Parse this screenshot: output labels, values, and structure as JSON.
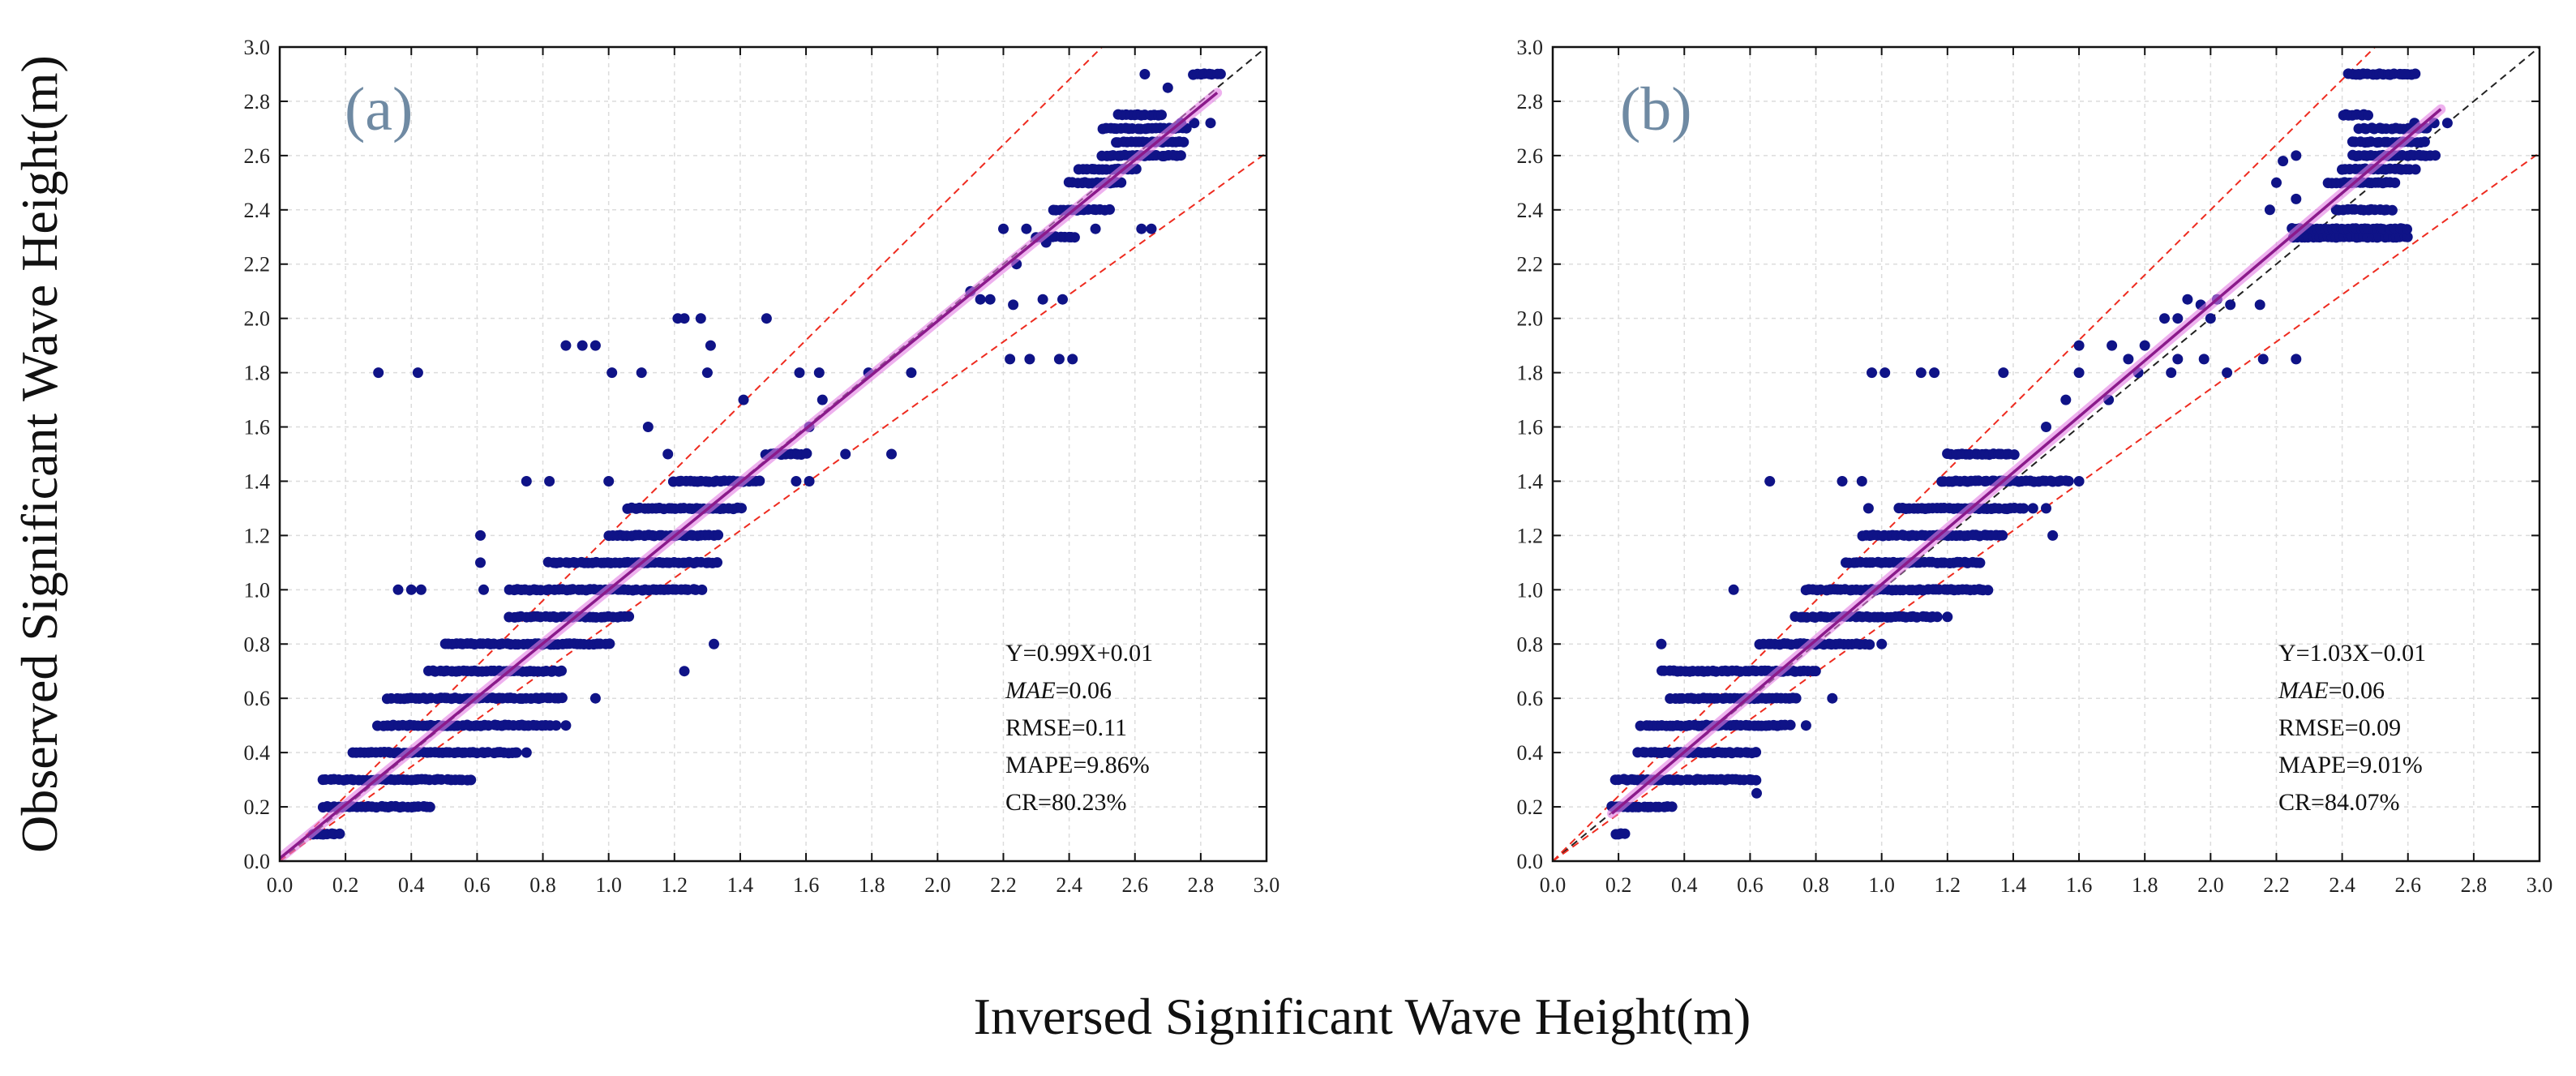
{
  "figure": {
    "ylabel": "Observed Significant Wave Height(m)",
    "xlabel": "Inversed Significant Wave Height(m)"
  },
  "chart_data": [
    {
      "type": "scatter",
      "panel_label": "(a)",
      "xlim": [
        0,
        3.0
      ],
      "ylim": [
        0,
        3.0
      ],
      "xticks": [
        "0.0",
        "0.2",
        "0.4",
        "0.6",
        "0.8",
        "1.0",
        "1.2",
        "1.4",
        "1.6",
        "1.8",
        "2.0",
        "2.2",
        "2.4",
        "2.6",
        "2.8",
        "3.0"
      ],
      "yticks": [
        "0.0",
        "0.2",
        "0.4",
        "0.6",
        "0.8",
        "1.0",
        "1.2",
        "1.4",
        "1.6",
        "1.8",
        "2.0",
        "2.2",
        "2.4",
        "2.6",
        "2.8",
        "3.0"
      ],
      "grid": true,
      "stats": [
        "Y=0.99X+0.01",
        "MAE",
        "=0.06",
        "RMSE=0.11",
        "MAPE=9.86%",
        "CR=80.23%"
      ],
      "fit": {
        "slope": 0.99,
        "intercept": 0.01,
        "x_range": [
          0.0,
          2.85
        ],
        "color": "#8b1a8b"
      },
      "reference_lines": {
        "one_to_one_color": "#222222",
        "bound_color": "#ee2b1f",
        "upper_slope": 1.2,
        "lower_slope": 0.87
      },
      "point_color": "#0f1387",
      "clusters": [
        {
          "y": 0.1,
          "x": [
            0.1,
            0.18,
            0.2
          ]
        },
        {
          "y": 0.2,
          "x": [
            0.13,
            0.46
          ]
        },
        {
          "y": 0.3,
          "x": [
            0.13,
            0.58
          ]
        },
        {
          "y": 0.4,
          "x": [
            0.22,
            0.72
          ]
        },
        {
          "y": 0.5,
          "x": [
            0.3,
            0.82
          ]
        },
        {
          "y": 0.6,
          "x": [
            0.33,
            0.86
          ]
        },
        {
          "y": 0.7,
          "x": [
            0.45,
            0.86
          ]
        },
        {
          "y": 0.8,
          "x": [
            0.5,
            1.0
          ]
        },
        {
          "y": 0.9,
          "x": [
            0.7,
            1.06
          ]
        },
        {
          "y": 1.0,
          "x": [
            0.7,
            1.28
          ]
        },
        {
          "y": 1.1,
          "x": [
            0.82,
            1.33
          ]
        },
        {
          "y": 1.2,
          "x": [
            1.0,
            1.33
          ]
        },
        {
          "y": 1.3,
          "x": [
            1.06,
            1.4
          ]
        },
        {
          "y": 1.4,
          "x": [
            1.2,
            1.46
          ]
        },
        {
          "y": 1.5,
          "x": [
            1.48,
            1.6
          ]
        },
        {
          "y": 2.3,
          "x": [
            2.3,
            2.42
          ]
        },
        {
          "y": 2.4,
          "x": [
            2.35,
            2.52
          ]
        },
        {
          "y": 2.5,
          "x": [
            2.4,
            2.56
          ]
        },
        {
          "y": 2.55,
          "x": [
            2.43,
            2.6
          ]
        },
        {
          "y": 2.6,
          "x": [
            2.5,
            2.74
          ]
        },
        {
          "y": 2.65,
          "x": [
            2.54,
            2.75
          ]
        },
        {
          "y": 2.7,
          "x": [
            2.5,
            2.76
          ]
        },
        {
          "y": 2.75,
          "x": [
            2.55,
            2.68
          ]
        },
        {
          "y": 2.9,
          "x": [
            2.78,
            2.86
          ]
        }
      ],
      "points": [
        [
          0.3,
          1.8
        ],
        [
          0.42,
          1.8
        ],
        [
          0.36,
          1.0
        ],
        [
          0.4,
          1.0
        ],
        [
          0.43,
          1.0
        ],
        [
          0.61,
          1.2
        ],
        [
          0.61,
          1.1
        ],
        [
          0.62,
          1.0
        ],
        [
          0.75,
          1.4
        ],
        [
          0.82,
          1.4
        ],
        [
          0.87,
          1.9
        ],
        [
          0.92,
          1.9
        ],
        [
          0.96,
          1.9
        ],
        [
          1.01,
          1.8
        ],
        [
          1.1,
          1.8
        ],
        [
          1.0,
          1.4
        ],
        [
          1.21,
          2.0
        ],
        [
          1.23,
          2.0
        ],
        [
          1.28,
          2.0
        ],
        [
          1.31,
          1.9
        ],
        [
          1.48,
          2.0
        ],
        [
          1.41,
          1.7
        ],
        [
          1.3,
          1.8
        ],
        [
          1.58,
          1.8
        ],
        [
          1.64,
          1.8
        ],
        [
          1.61,
          1.6
        ],
        [
          1.65,
          1.7
        ],
        [
          1.61,
          1.4
        ],
        [
          1.57,
          1.4
        ],
        [
          1.72,
          1.5
        ],
        [
          1.79,
          1.8
        ],
        [
          1.86,
          1.5
        ],
        [
          1.12,
          1.6
        ],
        [
          1.18,
          1.5
        ],
        [
          1.32,
          0.8
        ],
        [
          1.23,
          0.7
        ],
        [
          0.96,
          0.6
        ],
        [
          0.72,
          0.4
        ],
        [
          0.75,
          0.4
        ],
        [
          0.84,
          0.5
        ],
        [
          0.87,
          0.5
        ],
        [
          1.92,
          1.8
        ],
        [
          2.1,
          2.1
        ],
        [
          2.13,
          2.07
        ],
        [
          2.16,
          2.07
        ],
        [
          2.23,
          2.05
        ],
        [
          2.2,
          2.33
        ],
        [
          2.24,
          2.2
        ],
        [
          2.32,
          2.07
        ],
        [
          2.38,
          2.07
        ],
        [
          2.22,
          1.85
        ],
        [
          2.28,
          1.85
        ],
        [
          2.37,
          1.85
        ],
        [
          2.41,
          1.85
        ],
        [
          2.27,
          2.33
        ],
        [
          2.33,
          2.28
        ],
        [
          2.48,
          2.33
        ],
        [
          2.62,
          2.33
        ],
        [
          2.65,
          2.33
        ],
        [
          2.7,
          2.85
        ],
        [
          2.74,
          2.72
        ],
        [
          2.78,
          2.72
        ],
        [
          2.83,
          2.72
        ],
        [
          2.63,
          2.9
        ]
      ]
    },
    {
      "type": "scatter",
      "panel_label": "(b)",
      "xlim": [
        0,
        3.0
      ],
      "ylim": [
        0,
        3.0
      ],
      "xticks": [
        "0.0",
        "0.2",
        "0.4",
        "0.6",
        "0.8",
        "1.0",
        "1.2",
        "1.4",
        "1.6",
        "1.8",
        "2.0",
        "2.2",
        "2.4",
        "2.6",
        "2.8",
        "3.0"
      ],
      "yticks": [
        "0.0",
        "0.2",
        "0.4",
        "0.6",
        "0.8",
        "1.0",
        "1.2",
        "1.4",
        "1.6",
        "1.8",
        "2.0",
        "2.2",
        "2.4",
        "2.6",
        "2.8",
        "3.0"
      ],
      "grid": true,
      "stats": [
        "Y=1.03X−0.01",
        "MAE",
        "=0.06",
        "RMSE=0.09",
        "MAPE=9.01%",
        "CR=84.07%"
      ],
      "fit": {
        "slope": 1.03,
        "intercept": -0.01,
        "x_range": [
          0.18,
          2.7
        ],
        "color": "#8b1a8b"
      },
      "reference_lines": {
        "one_to_one_color": "#222222",
        "bound_color": "#ee2b1f",
        "upper_slope": 1.2,
        "lower_slope": 0.87
      },
      "point_color": "#0f1387",
      "clusters": [
        {
          "y": 0.1,
          "x": [
            0.19,
            0.22
          ]
        },
        {
          "y": 0.2,
          "x": [
            0.18,
            0.36
          ]
        },
        {
          "y": 0.3,
          "x": [
            0.19,
            0.62
          ]
        },
        {
          "y": 0.4,
          "x": [
            0.26,
            0.62
          ]
        },
        {
          "y": 0.5,
          "x": [
            0.27,
            0.72
          ]
        },
        {
          "y": 0.6,
          "x": [
            0.36,
            0.74
          ]
        },
        {
          "y": 0.7,
          "x": [
            0.33,
            0.8
          ]
        },
        {
          "y": 0.8,
          "x": [
            0.63,
            0.96
          ]
        },
        {
          "y": 0.9,
          "x": [
            0.74,
            1.17
          ]
        },
        {
          "y": 1.0,
          "x": [
            0.77,
            1.32
          ]
        },
        {
          "y": 1.1,
          "x": [
            0.89,
            1.3
          ]
        },
        {
          "y": 1.2,
          "x": [
            0.94,
            1.37
          ]
        },
        {
          "y": 1.3,
          "x": [
            1.05,
            1.43
          ]
        },
        {
          "y": 1.4,
          "x": [
            1.18,
            1.57
          ]
        },
        {
          "y": 1.5,
          "x": [
            1.2,
            1.4
          ]
        },
        {
          "y": 2.3,
          "x": [
            2.25,
            2.6
          ]
        },
        {
          "y": 2.33,
          "x": [
            2.25,
            2.6
          ]
        },
        {
          "y": 2.4,
          "x": [
            2.38,
            2.55
          ]
        },
        {
          "y": 2.5,
          "x": [
            2.36,
            2.56
          ]
        },
        {
          "y": 2.55,
          "x": [
            2.4,
            2.62
          ]
        },
        {
          "y": 2.6,
          "x": [
            2.43,
            2.68
          ]
        },
        {
          "y": 2.65,
          "x": [
            2.43,
            2.65
          ]
        },
        {
          "y": 2.7,
          "x": [
            2.45,
            2.66
          ]
        },
        {
          "y": 2.75,
          "x": [
            2.4,
            2.48
          ]
        },
        {
          "y": 2.9,
          "x": [
            2.42,
            2.62
          ]
        }
      ],
      "points": [
        [
          0.33,
          0.8
        ],
        [
          0.55,
          1.0
        ],
        [
          0.66,
          1.4
        ],
        [
          0.88,
          1.4
        ],
        [
          0.94,
          1.4
        ],
        [
          0.97,
          1.8
        ],
        [
          1.01,
          1.8
        ],
        [
          0.96,
          1.3
        ],
        [
          1.12,
          1.8
        ],
        [
          1.16,
          1.8
        ],
        [
          1.37,
          1.8
        ],
        [
          1.46,
          1.3
        ],
        [
          1.5,
          1.3
        ],
        [
          1.6,
          1.4
        ],
        [
          1.5,
          1.6
        ],
        [
          1.56,
          1.7
        ],
        [
          1.6,
          1.8
        ],
        [
          1.6,
          1.9
        ],
        [
          1.69,
          1.7
        ],
        [
          1.7,
          1.9
        ],
        [
          1.75,
          1.85
        ],
        [
          1.8,
          1.9
        ],
        [
          1.78,
          1.8
        ],
        [
          1.86,
          2.0
        ],
        [
          1.9,
          2.0
        ],
        [
          1.93,
          2.07
        ],
        [
          1.97,
          2.05
        ],
        [
          2.0,
          2.0
        ],
        [
          2.02,
          2.07
        ],
        [
          2.06,
          2.05
        ],
        [
          2.05,
          1.8
        ],
        [
          1.98,
          1.85
        ],
        [
          1.9,
          1.85
        ],
        [
          1.88,
          1.8
        ],
        [
          2.15,
          2.05
        ],
        [
          2.16,
          1.85
        ],
        [
          2.26,
          1.85
        ],
        [
          2.18,
          2.4
        ],
        [
          2.2,
          2.5
        ],
        [
          2.22,
          2.58
        ],
        [
          2.26,
          2.6
        ],
        [
          2.26,
          2.44
        ],
        [
          2.64,
          2.6
        ],
        [
          2.62,
          2.72
        ],
        [
          2.68,
          2.72
        ],
        [
          2.72,
          2.72
        ],
        [
          2.45,
          2.9
        ],
        [
          2.59,
          2.9
        ],
        [
          1.52,
          1.2
        ],
        [
          1.3,
          1.0
        ],
        [
          1.2,
          0.9
        ],
        [
          1.0,
          0.8
        ],
        [
          0.85,
          0.6
        ],
        [
          0.77,
          0.5
        ],
        [
          0.6,
          0.3
        ],
        [
          0.62,
          0.25
        ]
      ]
    }
  ]
}
